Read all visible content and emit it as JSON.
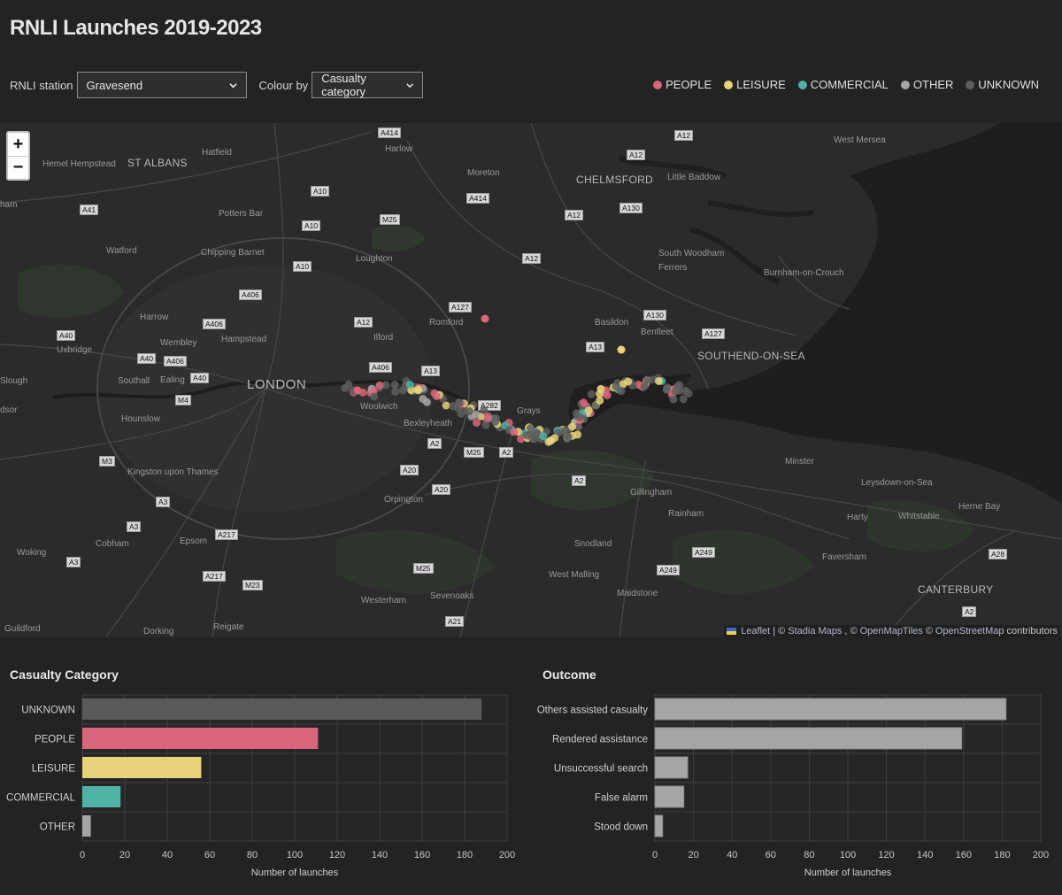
{
  "title": "RNLI Launches 2019-2023",
  "controls": {
    "station_label": "RNLI station",
    "station_value": "Gravesend",
    "colour_label": "Colour by",
    "colour_value": "Casualty category"
  },
  "legend": [
    {
      "label": "PEOPLE",
      "color": "#d9667a"
    },
    {
      "label": "LEISURE",
      "color": "#e8d37a"
    },
    {
      "label": "COMMERCIAL",
      "color": "#4fb3a6"
    },
    {
      "label": "OTHER",
      "color": "#a6a6a6"
    },
    {
      "label": "UNKNOWN",
      "color": "#5e5e5e"
    }
  ],
  "map": {
    "zoom_in": "+",
    "zoom_out": "−",
    "attribution": {
      "leaflet": "Leaflet",
      "sep1": "| ©",
      "stadia": "Stadia Maps",
      "sep2": ", ©",
      "omt": "OpenMapTiles",
      "sep3": "©",
      "osm": "OpenStreetMap",
      "contrib": "contributors"
    },
    "places": [
      "West Mersea",
      "Harlow",
      "Hatfield",
      "Hemel Hempstead",
      "ST ALBANS",
      "Moreton",
      "CHELMSFORD",
      "Little Baddow",
      "Potters Bar",
      "Watford",
      "Chipping Barnet",
      "Loughton",
      "South Woodham",
      "Ferrers",
      "Burnham-on-Crouch",
      "Harrow",
      "Wembley",
      "Hampstead",
      "Romford",
      "Basildon",
      "Benfleet",
      "SOUTHEND-ON-SEA",
      "Uxbridge",
      "Southall",
      "Ealing",
      "LONDON",
      "Ilford",
      "Slough",
      "Woolwich",
      "Bexleyheath",
      "Grays",
      "Hounslow",
      "Kingston upon Thames",
      "Orpington",
      "Minster",
      "Leysdown-on-Sea",
      "Gillingham",
      "Rainham",
      "Herne Bay",
      "Harty",
      "Whitstable",
      "Cobham",
      "Epsom",
      "Woking",
      "Snodland",
      "Faversham",
      "West Malling",
      "Sevenoaks",
      "Maidstone",
      "CANTERBURY",
      "Westerham",
      "Guildford",
      "Dorking",
      "Reigate",
      "ham",
      "dsor"
    ],
    "roads": [
      "A414",
      "A12",
      "A12",
      "A10",
      "A414",
      "A41",
      "A10",
      "M25",
      "A12",
      "A130",
      "A10",
      "A12",
      "A406",
      "A127",
      "A12",
      "A130",
      "A406",
      "A127",
      "A40",
      "A40",
      "A406",
      "A13",
      "A40",
      "A406",
      "A13",
      "M4",
      "A282",
      "A2",
      "M25",
      "A2",
      "M3",
      "A20",
      "A20",
      "A2",
      "A3",
      "A3",
      "A217",
      "A249",
      "A28",
      "A3",
      "A217",
      "M23",
      "M25",
      "A249",
      "A21",
      "A2"
    ]
  },
  "casualty_chart": {
    "title": "Casualty Category",
    "categories": [
      "UNKNOWN",
      "PEOPLE",
      "LEISURE",
      "COMMERCIAL",
      "OTHER"
    ],
    "values": [
      188,
      111,
      56,
      18,
      4
    ],
    "colors": [
      "#5a5a5a",
      "#d9667a",
      "#e8d37a",
      "#4fb3a6",
      "#a6a6a6"
    ],
    "xlabel": "Number of launches",
    "ticks": [
      "0",
      "20",
      "40",
      "60",
      "80",
      "100",
      "120",
      "140",
      "160",
      "180",
      "200"
    ],
    "xlim": [
      0,
      200
    ]
  },
  "outcome_chart": {
    "title": "Outcome",
    "categories": [
      "Others assisted casualty",
      "Rendered assistance",
      "Unsuccessful search",
      "False alarm",
      "Stood down"
    ],
    "values": [
      182,
      159,
      17,
      15,
      4
    ],
    "color": "#a6a6a6",
    "xlabel": "Number of launches",
    "ticks": [
      "0",
      "20",
      "40",
      "60",
      "80",
      "100",
      "120",
      "140",
      "160",
      "180",
      "200"
    ],
    "xlim": [
      0,
      200
    ]
  }
}
